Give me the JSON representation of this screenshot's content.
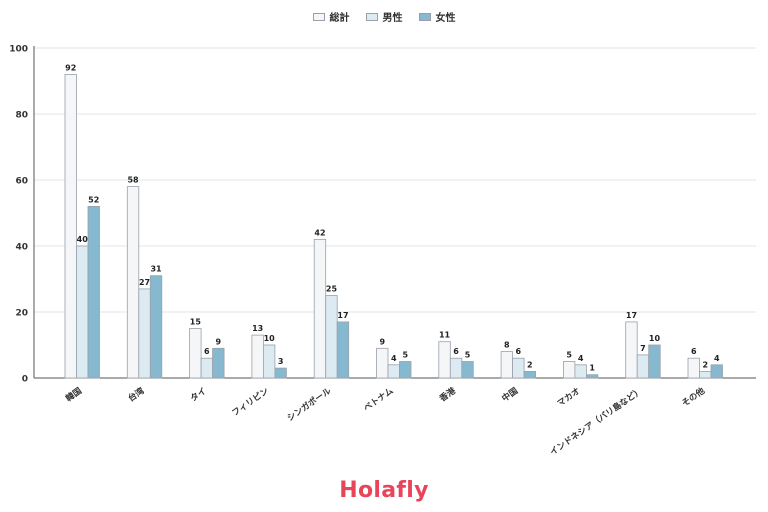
{
  "chart_data": {
    "type": "bar",
    "categories": [
      "韓国",
      "台湾",
      "タイ",
      "フィリピン",
      "シンガポール",
      "ベトナム",
      "香港",
      "中国",
      "マカオ",
      "インドネシア（バリ島など）",
      "その他"
    ],
    "series": [
      {
        "name": "総計",
        "values": [
          92,
          58,
          15,
          13,
          42,
          9,
          11,
          8,
          5,
          17,
          6
        ],
        "color": "#f5f6f8"
      },
      {
        "name": "男性",
        "values": [
          40,
          27,
          6,
          10,
          25,
          4,
          6,
          6,
          4,
          7,
          2
        ],
        "color": "#dceaf2"
      },
      {
        "name": "女性",
        "values": [
          52,
          31,
          9,
          3,
          17,
          5,
          5,
          2,
          1,
          10,
          4
        ],
        "color": "#86b9cf"
      }
    ],
    "ylim": [
      0,
      100
    ],
    "yticks": [
      0,
      20,
      40,
      60,
      80,
      100
    ],
    "grid": true,
    "legend": "top-center",
    "title": "",
    "xlabel": "",
    "ylabel": ""
  },
  "brand": {
    "logo_text": "Holafly",
    "color": "#e8445a"
  }
}
